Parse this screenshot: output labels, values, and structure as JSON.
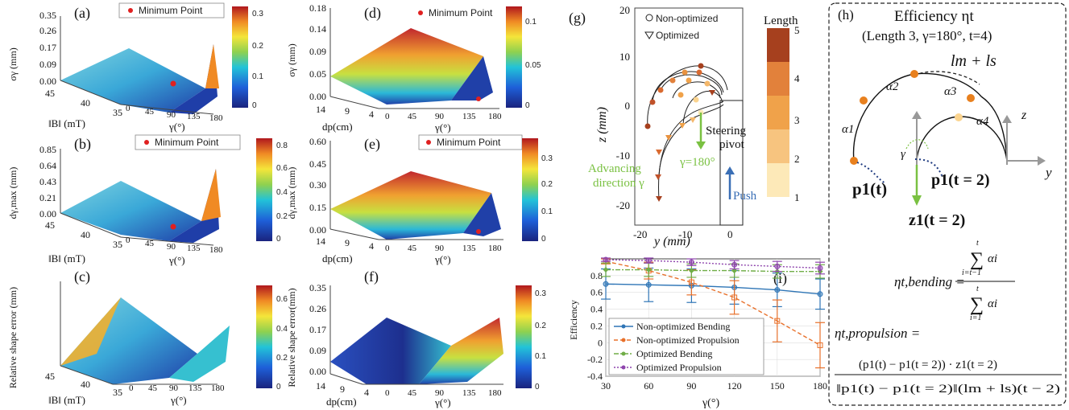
{
  "panels": {
    "a": {
      "tag": "(a)",
      "zlabel": "σγ (mm)",
      "xlabel": "‖B‖ (mT)",
      "ylabel": "γ(°)",
      "legend": "Minimum Point",
      "zticks": [
        "0.35",
        "0.26",
        "0.17",
        "0.09",
        "0.00"
      ],
      "xticks": [
        "45",
        "40",
        "35"
      ],
      "yticks": [
        "0",
        "45",
        "90",
        "135",
        "180"
      ],
      "cbar": [
        "0.3",
        "0.2",
        "0.1",
        "0"
      ]
    },
    "b": {
      "tag": "(b)",
      "zlabel": "dγ,max (mm)",
      "xlabel": "‖B‖ (mT)",
      "ylabel": "γ(°)",
      "legend": "Minimum Point",
      "zticks": [
        "0.85",
        "0.64",
        "0.43",
        "0.21",
        "0.00"
      ],
      "xticks": [
        "45",
        "40",
        "35"
      ],
      "yticks": [
        "0",
        "45",
        "90",
        "135",
        "180"
      ],
      "cbar": [
        "0.8",
        "0.6",
        "0.4",
        "0.2",
        "0"
      ]
    },
    "c": {
      "tag": "(c)",
      "zlabel": "Relative shape error (mm)",
      "xlabel": "‖B‖ (mT)",
      "ylabel": "γ(°)",
      "xticks": [
        "45",
        "40",
        "35"
      ],
      "yticks": [
        "0",
        "45",
        "90",
        "135",
        "180"
      ],
      "cbar": [
        "0.6",
        "0.4",
        "0.2",
        "0"
      ]
    },
    "d": {
      "tag": "(d)",
      "zlabel": "σγ (mm)",
      "xlabel": "dp(cm)",
      "ylabel": "γ(°)",
      "legend": "Minimum Point",
      "zticks": [
        "0.18",
        "0.14",
        "0.09",
        "0.05",
        "0.00"
      ],
      "xticks": [
        "14",
        "9",
        "4"
      ],
      "yticks": [
        "0",
        "45",
        "90",
        "135",
        "180"
      ],
      "cbar": [
        "0.1",
        "0.05",
        "0"
      ]
    },
    "e": {
      "tag": "(e)",
      "zlabel": "dγ,max (mm)",
      "xlabel": "dp(cm)",
      "ylabel": "γ(°)",
      "legend": "Minimum Point",
      "zticks": [
        "0.60",
        "0.45",
        "0.30",
        "0.15",
        "0.00"
      ],
      "xticks": [
        "14",
        "9",
        "4"
      ],
      "yticks": [
        "0",
        "45",
        "90",
        "135",
        "180"
      ],
      "cbar": [
        "0.3",
        "0.2",
        "0.1",
        "0"
      ]
    },
    "f": {
      "tag": "(f)",
      "zlabel": "Relative shape error(mm)",
      "xlabel": "dp(cm)",
      "ylabel": "γ(°)",
      "zticks": [
        "0.35",
        "0.26",
        "0.17",
        "0.09",
        "0.00"
      ],
      "xticks": [
        "14",
        "9",
        "4"
      ],
      "yticks": [
        "0",
        "45",
        "90",
        "135",
        "180"
      ],
      "cbar": [
        "0.3",
        "0.2",
        "0.1",
        "0"
      ]
    },
    "g": {
      "tag": "(g)",
      "xlabel": "y (mm)",
      "ylabel": "z (mm)",
      "legend": [
        "Non-optimized",
        "Optimized"
      ],
      "cbar_title": "Length",
      "cbar": [
        "5",
        "4",
        "3",
        "2",
        "1"
      ],
      "annotations": {
        "steering": "Steering",
        "pivot": "pivot",
        "gamma": "γ=180°",
        "adv1": "Advancing",
        "adv2": "direction γ",
        "push": "Push"
      }
    },
    "h": {
      "tag": "(h)",
      "title1": "Efficiency ηt",
      "title2": "(Length 3,  γ=180°, t=4)",
      "lm": "lm + ls",
      "labels": [
        "α2",
        "α3",
        "α1",
        "α4",
        "z",
        "γ",
        "y",
        "p1(t)",
        "p1(t = 2)",
        "z1(t = 2)"
      ],
      "eq_bending": "ηt,bending =",
      "eq_prop": "ηt,propulsion =",
      "num": "(p1(t) − p1(t = 2)) · z1(t = 2)",
      "den": "‖p1(t) − p1(t = 2)‖(lm + ls)(t − 2)"
    }
  },
  "chart_data": {
    "type": "line",
    "tag": "(i)",
    "ylabel": "Efficiency",
    "xlabel": "γ(°)",
    "x": [
      30,
      60,
      90,
      120,
      150,
      180
    ],
    "xlim": [
      30,
      180
    ],
    "ylim": [
      -0.4,
      1.0
    ],
    "yticks": [
      -0.4,
      -0.2,
      0,
      0.2,
      0.4,
      0.6,
      0.8
    ],
    "grid": true,
    "legend_position": "bottom-left",
    "series": [
      {
        "name": "Non-optimized Bending",
        "values": [
          0.7,
          0.69,
          0.68,
          0.66,
          0.63,
          0.58
        ],
        "err": [
          0.18,
          0.2,
          0.2,
          0.2,
          0.2,
          0.18
        ],
        "color": "#2e75b6",
        "marker": "circle",
        "dash": ""
      },
      {
        "name": "Non-optimized Propulsion",
        "values": [
          0.97,
          0.86,
          0.72,
          0.54,
          0.26,
          -0.03
        ],
        "err": [
          0.03,
          0.1,
          0.15,
          0.2,
          0.25,
          0.27
        ],
        "color": "#e8702a",
        "marker": "square",
        "dash": "5,3"
      },
      {
        "name": "Optimized Bending",
        "values": [
          0.87,
          0.87,
          0.86,
          0.86,
          0.85,
          0.85
        ],
        "err": [
          0.08,
          0.08,
          0.08,
          0.08,
          0.08,
          0.08
        ],
        "color": "#70ad47",
        "marker": "diamond",
        "dash": "6,2,2,2"
      },
      {
        "name": "Optimized Propulsion",
        "values": [
          0.99,
          0.98,
          0.96,
          0.93,
          0.91,
          0.89
        ],
        "err": [
          0.02,
          0.03,
          0.04,
          0.05,
          0.06,
          0.07
        ],
        "color": "#8e44ad",
        "marker": "circle",
        "dash": "2,2"
      }
    ]
  }
}
